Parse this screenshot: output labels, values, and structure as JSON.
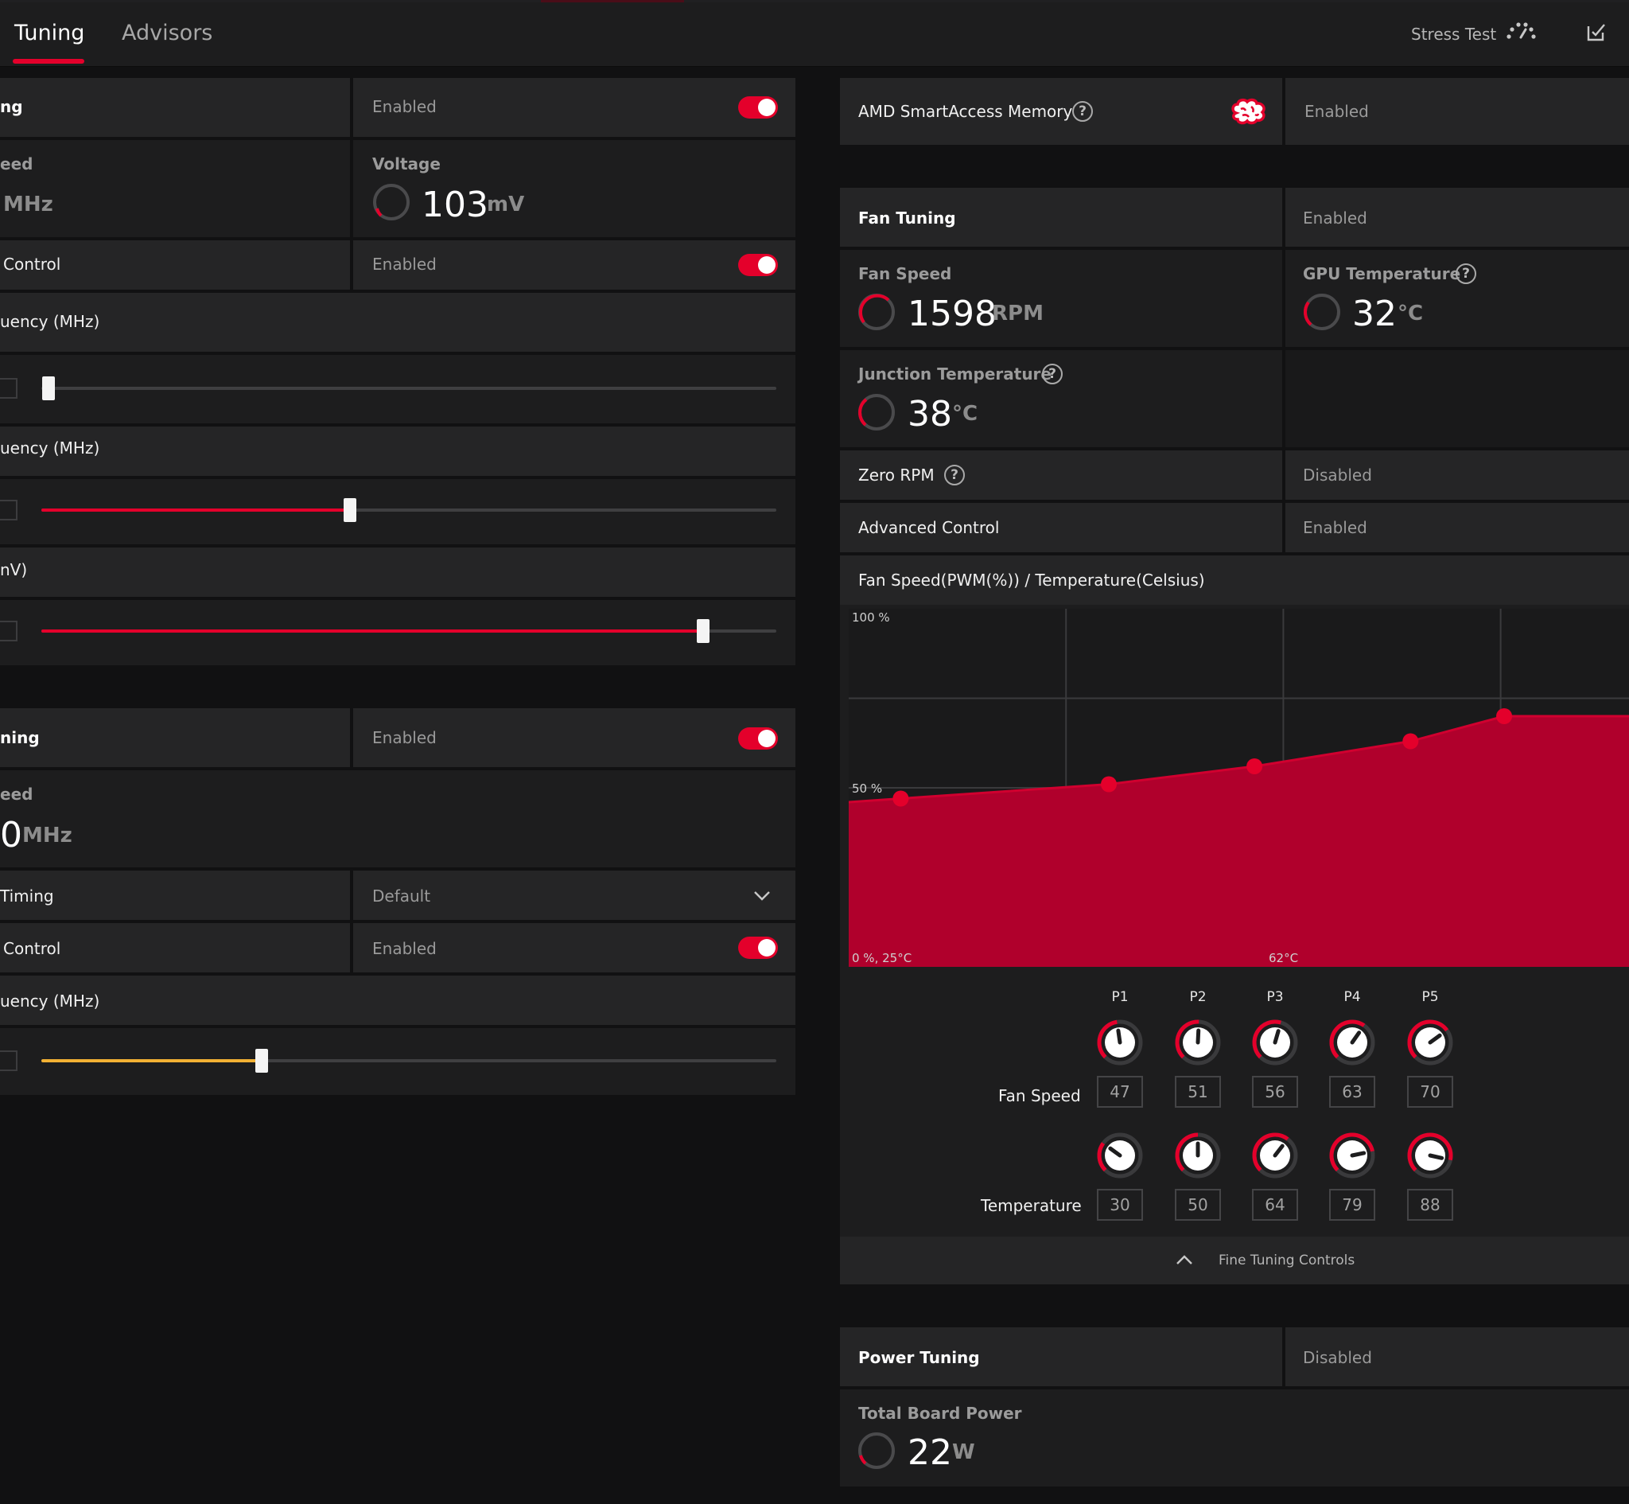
{
  "tabs": {
    "tuning": "Tuning",
    "advisors": "Advisors"
  },
  "header": {
    "stress_test": "Stress Test"
  },
  "accent_color": "#e4002b",
  "gpu_panel": {
    "title_fragment": "ng",
    "status": "Enabled",
    "speed_label_fragment": "eed",
    "speed_unit": "MHz",
    "voltage_label": "Voltage",
    "voltage_value": "103",
    "voltage_unit": "mV",
    "control_fragment": "Control",
    "control_status": "Enabled",
    "min_freq_fragment": "uency (MHz)",
    "min_freq_slider": 0.01,
    "max_freq_fragment": "uency (MHz)",
    "max_freq_slider": 0.42,
    "voltage_fragment": "nV)",
    "voltage_slider": 0.9
  },
  "vram_panel": {
    "title_fragment": "ning",
    "status": "Enabled",
    "speed_label_fragment": "eed",
    "speed_value_fragment": "0",
    "speed_unit": "MHz",
    "timing_fragment": "Timing",
    "timing_value": "Default",
    "control_fragment": "Control",
    "control_status": "Enabled",
    "freq_fragment": "uency (MHz)",
    "freq_slider": 0.3
  },
  "sam": {
    "label": "AMD SmartAccess Memory",
    "status": "Enabled"
  },
  "fan": {
    "title": "Fan Tuning",
    "status": "Enabled",
    "fan_speed_label": "Fan Speed",
    "fan_speed_value": "1598",
    "fan_speed_unit": "RPM",
    "gpu_temp_label": "GPU Temperature",
    "gpu_temp_value": "32",
    "gpu_temp_unit": "°C",
    "junction_label": "Junction Temperature",
    "junction_value": "38",
    "junction_unit": "°C",
    "zero_rpm_label": "Zero RPM",
    "zero_rpm_status": "Disabled",
    "advanced_label": "Advanced Control",
    "advanced_status": "Enabled",
    "curve_title": "Fan Speed(PWM(%)) / Temperature(Celsius)",
    "fan_speed_row_label": "Fan Speed",
    "temperature_row_label": "Temperature",
    "fine_tuning": "Fine Tuning Controls"
  },
  "power": {
    "title": "Power Tuning",
    "status": "Disabled",
    "tbp_label": "Total Board Power",
    "tbp_value": "22",
    "tbp_unit": "W"
  },
  "chart_data": {
    "type": "area",
    "title": "Fan Speed(PWM(%)) / Temperature(Celsius)",
    "x_tick_labels": [
      "0 %, 25°C",
      "62°C"
    ],
    "y_tick_labels": [
      "100 %",
      "50 %"
    ],
    "ylim": [
      0,
      100
    ],
    "xlim": [
      25,
      100
    ],
    "points": [
      "P1",
      "P2",
      "P3",
      "P4",
      "P5"
    ],
    "series": [
      {
        "name": "Fan Speed",
        "values": [
          47,
          51,
          56,
          63,
          70
        ]
      },
      {
        "name": "Temperature",
        "values": [
          30,
          50,
          64,
          79,
          88
        ]
      }
    ],
    "fill_color": "#b0002c",
    "grid": true
  }
}
